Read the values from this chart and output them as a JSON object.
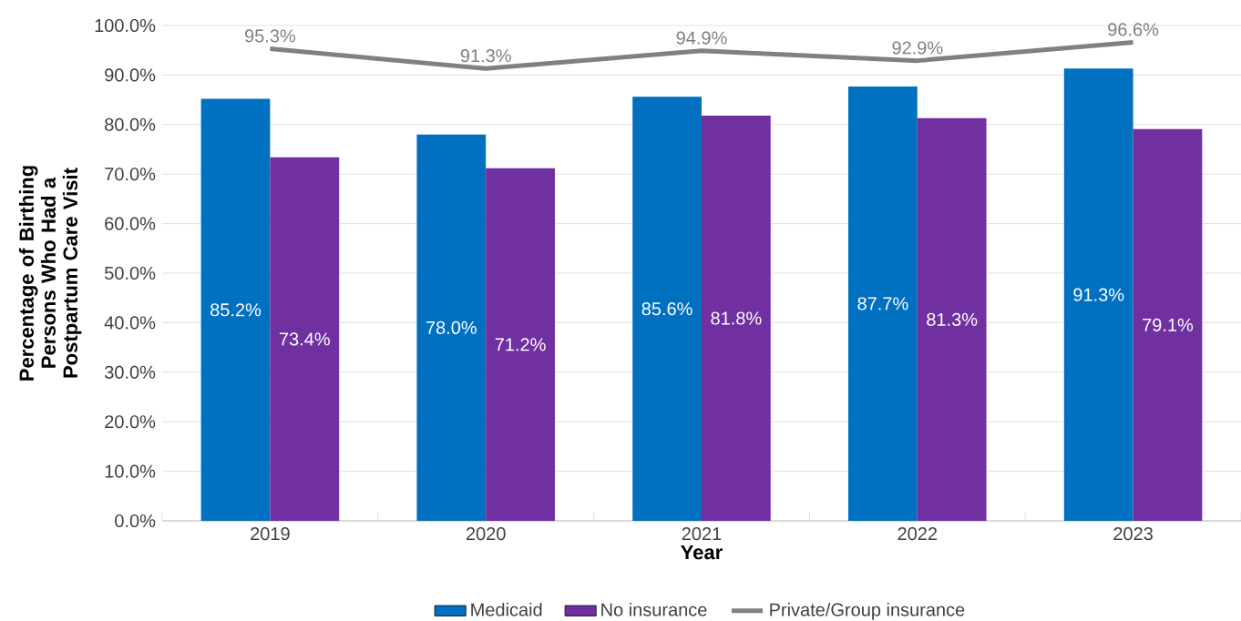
{
  "chart_data": {
    "type": "bar",
    "xlabel": "Year",
    "ylabel": "Percentage of Birthing Persons Who Had a Postpartum Care Visit",
    "categories": [
      "2019",
      "2020",
      "2021",
      "2022",
      "2023"
    ],
    "series": [
      {
        "name": "Medicaid",
        "color": "#0070c0",
        "values": [
          85.2,
          78.0,
          85.6,
          87.7,
          91.3
        ],
        "value_labels": [
          "85.2%",
          "78.0%",
          "85.6%",
          "87.7%",
          "91.3%"
        ]
      },
      {
        "name": "No insurance",
        "color": "#7030a0",
        "values": [
          73.4,
          71.2,
          81.8,
          81.3,
          79.1
        ],
        "value_labels": [
          "73.4%",
          "71.2%",
          "81.8%",
          "81.3%",
          "79.1%"
        ]
      },
      {
        "name": "Private/Group insurance",
        "type": "line",
        "color": "#808080",
        "values": [
          95.3,
          91.3,
          94.9,
          92.9,
          96.6
        ],
        "value_labels": [
          "95.3%",
          "91.3%",
          "94.9%",
          "92.9%",
          "96.6%"
        ]
      }
    ],
    "ylim": [
      0,
      100
    ],
    "yticks": [
      {
        "value": 0,
        "label": "0.0%"
      },
      {
        "value": 10,
        "label": "10.0%"
      },
      {
        "value": 20,
        "label": "20.0%"
      },
      {
        "value": 30,
        "label": "30.0%"
      },
      {
        "value": 40,
        "label": "40.0%"
      },
      {
        "value": 50,
        "label": "50.0%"
      },
      {
        "value": 60,
        "label": "60.0%"
      },
      {
        "value": 70,
        "label": "70.0%"
      },
      {
        "value": 80,
        "label": "80.0%"
      },
      {
        "value": 90,
        "label": "90.0%"
      },
      {
        "value": 100,
        "label": "100.0%"
      }
    ],
    "grid": "y",
    "legend": "bottom",
    "marker": "none",
    "line_style": "solid"
  }
}
